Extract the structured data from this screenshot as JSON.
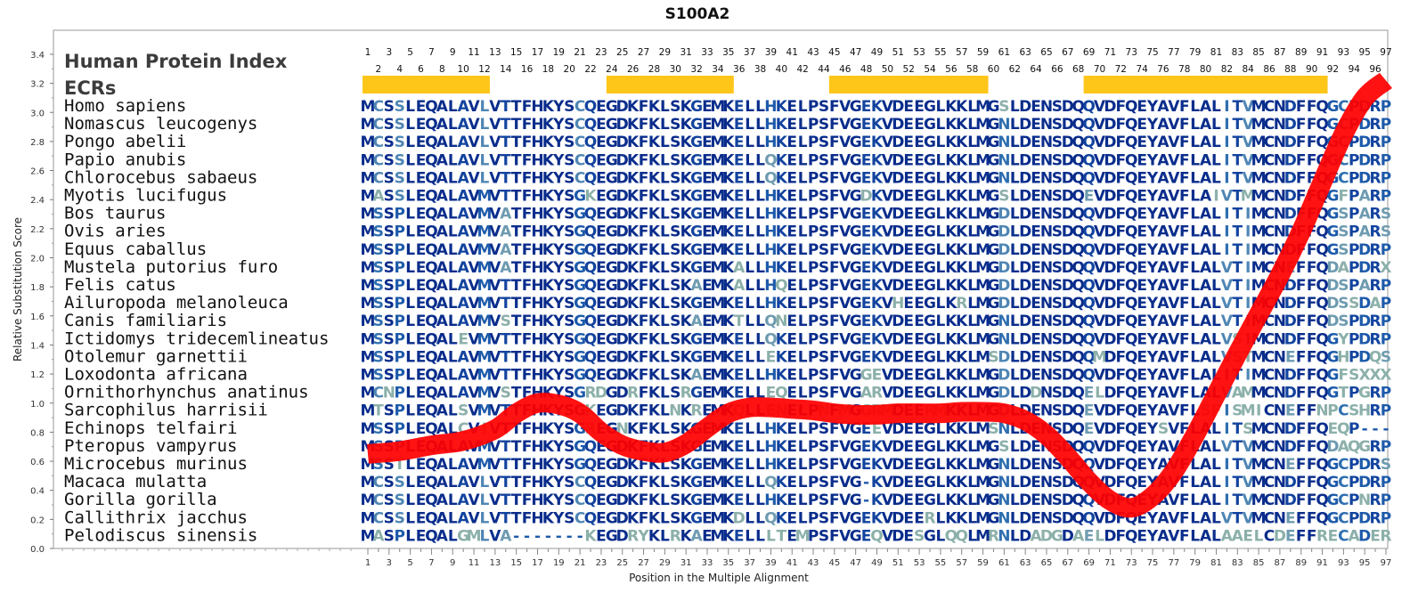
{
  "chart_data": {
    "type": "line",
    "title": "S100A2",
    "xlabel": "Position in the Multiple Alignment",
    "ylabel": "Relative Substitution Score",
    "ylim": [
      0.0,
      3.4
    ],
    "y_ticks": [
      "0.0",
      "0.2",
      "0.4",
      "0.6",
      "0.8",
      "1.0",
      "1.2",
      "1.4",
      "1.6",
      "1.8",
      "2.0",
      "2.2",
      "2.4",
      "2.6",
      "2.8",
      "3.0",
      "3.2",
      "3.4"
    ],
    "xlim": [
      1,
      97
    ],
    "x_ticks_odd": [
      "1",
      "3",
      "5",
      "7",
      "9",
      "11",
      "13",
      "15",
      "17",
      "19",
      "21",
      "23",
      "25",
      "27",
      "29",
      "31",
      "33",
      "35",
      "37",
      "39",
      "41",
      "43",
      "45",
      "47",
      "49",
      "51",
      "53",
      "55",
      "57",
      "59",
      "61",
      "63",
      "65",
      "67",
      "69",
      "71",
      "73",
      "75",
      "77",
      "79",
      "81",
      "83",
      "85",
      "87",
      "89",
      "91",
      "93",
      "95",
      "97"
    ],
    "x_ticks_even": [
      "2",
      "4",
      "6",
      "8",
      "10",
      "12",
      "14",
      "16",
      "18",
      "20",
      "22",
      "24",
      "26",
      "28",
      "30",
      "32",
      "34",
      "36",
      "38",
      "40",
      "42",
      "44",
      "46",
      "48",
      "50",
      "52",
      "54",
      "56",
      "58",
      "60",
      "62",
      "64",
      "66",
      "68",
      "70",
      "72",
      "74",
      "76",
      "78",
      "80",
      "82",
      "84",
      "86",
      "88",
      "90",
      "92",
      "94",
      "96"
    ],
    "header_title": "Human Protein Index",
    "ecr_label": "ECRs",
    "ecr_color": "#ffc61a",
    "curve_color": "#ff0000",
    "ecrs": [
      [
        1,
        12
      ],
      [
        24,
        35
      ],
      [
        45,
        59
      ],
      [
        69,
        91
      ]
    ],
    "species": [
      {
        "name": "Homo sapiens",
        "seq": "MCSSLEQALAVLVTTFHKYSCQEGDKFKLSKGEMKELLHKELPSFVGEKVDEEGLKKLMGSLDENSDQQVDFQEYAVFLALITVMCNDFFQGCPDRP"
      },
      {
        "name": "Nomascus leucogenys",
        "seq": "MCSSLEQALAVLVTTFHKYSCQEGDKFKLSKGEMKELLHKELPSFVGEKVDEEGLKKLMGNLDENSDQQVDFQEYAVFLALITVMCNDFFQGCPDRP"
      },
      {
        "name": "Pongo abelii",
        "seq": "MCSSLEQALAVLVTTFHKYSCQEGDKFKLSKGEMKELLHKELPSFVGEKVDEEGLKKLMGNLDENSDQQVDFQEYAVFLALITVMCNDFFQGCPDRP"
      },
      {
        "name": "Papio anubis",
        "seq": "MCSSLEQALAVLVTTFHKYSCQEGDKFKLSKGEMKELLQKELPSFVGEKVDEEGLKKLMGNLDENSDQQVDFQEYAVFLALITVMCNDFFQGCPDRP"
      },
      {
        "name": "Chlorocebus sabaeus",
        "seq": "MCSSLEQALAVLVTTFHKYSCQEGDKFKLSKGEMKELLQKELPSFVGEKVDEEGLKKLMGNLDENSDQQVDFQEYAVFLALITVMCNDFFQGCPDRP"
      },
      {
        "name": "Myotis lucifugus",
        "seq": "MASSLEQALAVMVTTFHKYSGKEGDKFKLSKGEMKELLHKELPSFVGDKVDEEGLKKLMGSLDENSDQEVDFQEYAVFLAIVTMMCNDFFQGFPARP"
      },
      {
        "name": "Bos taurus",
        "seq": "MSSPLEQALAVMVATFHKYSGQEGDKFKLSKGEMKELLHKELPSFVGEKVDEEGLKKLMGDLDENSDQQVDFQEYAVFLALITIMCNDFFQGSPARS"
      },
      {
        "name": "Ovis aries",
        "seq": "MSSPLEQALAVMVATFHKYSGQEGDKFKLSKGEMKELLHKELPSFVGEKVDEEGLKKLMGDLDENSDQQVDFQEYAVFLALITIMCNDFFQGSPARS"
      },
      {
        "name": "Equus caballus",
        "seq": "MSSPLEQALAVMVATFHKYSGQEGDKFKLSKGEMKELLHKELPSFVGEKVDEEGLKKLMGDLDENSDQQVDFQEYAVFLALITIMCNDFFQGSPDRP"
      },
      {
        "name": "Mustela putorius furo",
        "seq": "MSSPLEQALAVMVATFHKYSGQEGDKFKLSKGEMKALLHKELPSFVGEKVDEEGLKKLMGDLDENSDQQVDFQEYAVFLALVTIMCNEFFQDAPDRX"
      },
      {
        "name": "Felis catus",
        "seq": "MSSPLEQALAVMVTTFHKYSGQEGDKFKLSKAEMKALLHQELPSFVGEKVDEEGLKKLMGDLDENSDQQVDFQEYAVFLALVTIMCNDFFQDSPARP"
      },
      {
        "name": "Ailuropoda melanoleuca",
        "seq": "MSSPLEQALAVMVTTFHKYSGQEGDKFKLSKGEMKELLHKELPSFVGEKVHEEGLKRLMGDLDENSDQQVDFQEYAVFLALVTIMCNDFFQDSSDAP"
      },
      {
        "name": "Canis familiaris",
        "seq": "MSSPLEQALAVMVSTFHKYSGQEGDKFKLSKAEMKTLLQNELPSFVGEKVDEEGLKKLMGNLDENSDQQVDFQEYAVFLALVTIMCNDFFQDSPDRP"
      },
      {
        "name": "Ictidomys tridecemlineatus",
        "seq": "MSSPLEQALEVMVTTFHKYSGQEGDKFKLSKGEMKELLQKELPSFVGEKVDEEGLKKLMGNLDENSDQQVDFQEYAVFLALVSIMCNDFFQGYPDRP"
      },
      {
        "name": "Otolemur garnettii",
        "seq": "MSSPLEQALAVMVTTFHKYSGQEGDKFKLSKGEMKELLEKELPSFVGEKVDEEGLKKLMSDLDENSDQQMDFQEYAVFLALVSTMCNEFFQGHPDQS"
      },
      {
        "name": "Loxodonta africana",
        "seq": "MSSPLEQALAVMVTTFHKYSGQEGDKFKLSKAEMKELLHKELPSFVGGEVDEEGLKKLMGDLDENSDQQVDFQEYAVFLALITIMCNDFFQGFSXXX"
      },
      {
        "name": "Ornithorhynchus anatinus",
        "seq": "MCNPLEQALAVMVSTFHKYSGRDGDRFKLSRGEMKELLEQELPSFVGARVDEEGLKKLMGDLDDNSDQELDFQEYAVFLALVAMMCNDFFQGTPGRP"
      },
      {
        "name": "Sarcophilus harrisii",
        "seq": "MTSPLEQALSVMVTTFHKYSGKEGDKFKLNKREMKQLLENELPNFMGGRMDEERMKKLMGDLDENSDQEVDFQEYAVFLSFISMICNEFFNPCSHRP"
      },
      {
        "name": "Echinops telfairi",
        "seq": "MSSPLEQALCVIVTTFHKYSGREGNKFKLSKGEMKELLHKELPSFVGEEVDEEGLKKLMSNLDENSDQEVDFQEYSVFLALITSMCNDFFQEQP---"
      },
      {
        "name": "Pteropus vampyrus",
        "seq": "MSSPLEQALAVMVTTFHKYSGQEGDKFKLSKGEMKELLHKELPSFVGEKVDEEGLKKLMGSLDENSDQQVDFQEYAVFLALVTVMCNDFFQDAQGRP"
      },
      {
        "name": "Microcebus murinus",
        "seq": "MSSTLEQALAVMVTTFHKYSGQEGDKFKLSKGEMKELLHKELPSFVGEKVDEEGLKKLMGNLDENSDQQVDFQEYAVFLALITVMCNEFFQGCPDRS"
      },
      {
        "name": "Macaca mulatta",
        "seq": "MCSSLEQALAVLVTTFHKYSCQEGDKFKLSKGEMKELLQKELPSFVG-KVDEEGLKKLMGNLDENSDQQVDFQEYAVFLALITVMCNDFFQGCPDRP"
      },
      {
        "name": "Gorilla gorilla",
        "seq": "MCSSLEQALAVLVTTFHKYSCQEGDKFKLSKGEMKELLHKELPSFVG-KVDEEGLKKLMGNLDENSDQQVDFQEYAVFLALITVMCNDFFQGCPNRP"
      },
      {
        "name": "Callithrix jacchus",
        "seq": "MCSSLEQALAVLVTTFHKYSCQEGDKFKLSKGEMKDLLQKELPSFVGEKVDEERLKKLMGNLDENSDQQVDFQEYAVFLALVTVMCNEFFQGCPDRP"
      },
      {
        "name": "Pelodiscus sinensis",
        "seq": "MASPLEQALGMLVA-------KEGDRYKLRKAEMKELLLTEMPSFVGEQVDESGLQQLMRNLDADGDAELDFQEYAVFLALAAELCDEFFRECADER"
      }
    ],
    "series": [
      {
        "x": [
          1,
          4,
          7,
          10,
          13,
          15,
          17,
          19,
          21,
          23,
          25,
          27,
          29,
          31,
          33,
          35,
          37,
          39,
          41,
          43,
          45,
          47,
          49,
          51,
          53,
          55,
          57,
          59,
          61,
          63,
          65,
          67,
          69,
          71,
          73,
          75,
          77,
          79,
          81,
          83,
          85,
          87,
          89,
          91,
          93,
          95,
          97
        ],
        "y": [
          0.65,
          0.67,
          0.71,
          0.74,
          0.82,
          0.93,
          1.0,
          0.99,
          0.93,
          0.8,
          0.71,
          0.67,
          0.66,
          0.72,
          0.83,
          0.93,
          0.97,
          0.97,
          0.96,
          0.95,
          0.93,
          0.92,
          0.92,
          0.93,
          0.93,
          0.93,
          0.94,
          0.94,
          0.93,
          0.88,
          0.78,
          0.63,
          0.46,
          0.33,
          0.28,
          0.36,
          0.53,
          0.78,
          1.06,
          1.34,
          1.61,
          1.88,
          2.18,
          2.52,
          2.85,
          3.1,
          3.22
        ]
      }
    ]
  }
}
